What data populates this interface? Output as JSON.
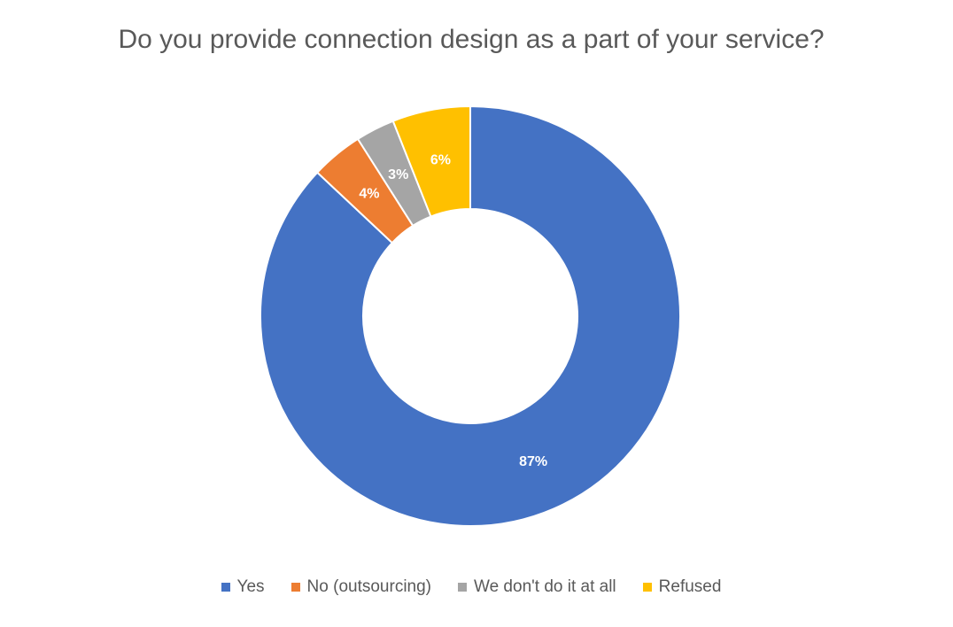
{
  "chart_data": {
    "type": "pie",
    "variant": "donut",
    "title": "Do you provide connection design as a part of your service?",
    "categories": [
      "Yes",
      "No (outsourcing)",
      "We don't do it at all",
      "Refused"
    ],
    "values": [
      87,
      4,
      3,
      6
    ],
    "labels": [
      "87%",
      "4%",
      "3%",
      "6%"
    ],
    "unit": "%",
    "colors": [
      "#4472C4",
      "#ED7D31",
      "#A5A5A5",
      "#FFC000"
    ],
    "start_angle_deg": 0,
    "direction": "clockwise",
    "legend": {
      "position": "bottom",
      "entries": [
        "Yes",
        "No (outsourcing)",
        "We don't do it at all",
        "Refused"
      ]
    }
  }
}
